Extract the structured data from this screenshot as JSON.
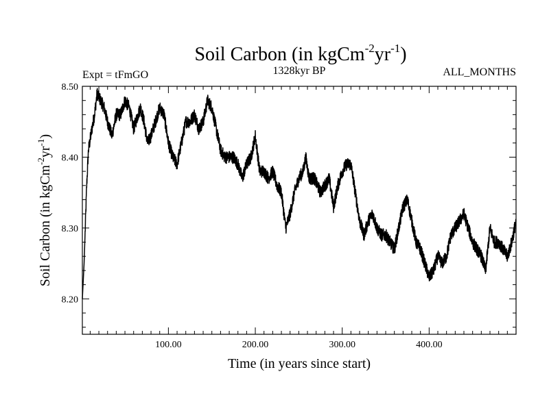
{
  "chart_data": {
    "type": "line",
    "title": "Soil Carbon (in kgCm",
    "title_sup1": "-2",
    "title_mid": "yr",
    "title_sup2": "-1",
    "title_end": ")",
    "left_label": "Expt = tFmGO",
    "center_label": "1328kyr BP",
    "right_label": "ALL_MONTHS",
    "xlabel": "Time (in years since start)",
    "ylabel": "Soil Carbon (in kgCm",
    "ylabel_sup1": "-2",
    "ylabel_mid": "yr",
    "ylabel_sup2": "-1",
    "ylabel_end": ")",
    "xlim": [
      1,
      500
    ],
    "ylim": [
      8.15,
      8.5
    ],
    "xticks": [
      100,
      200,
      300,
      400
    ],
    "xtick_labels": [
      "100.00",
      "200.00",
      "300.00",
      "400.00"
    ],
    "yticks": [
      8.2,
      8.3,
      8.4,
      8.5
    ],
    "ytick_labels": [
      "8.20",
      "8.30",
      "8.40",
      "8.50"
    ],
    "series_name": "Soil Carbon",
    "color": "#000000",
    "anchors": [
      [
        1,
        8.2
      ],
      [
        3,
        8.25
      ],
      [
        6,
        8.36
      ],
      [
        8,
        8.41
      ],
      [
        12,
        8.44
      ],
      [
        15,
        8.46
      ],
      [
        18,
        8.49
      ],
      [
        22,
        8.48
      ],
      [
        26,
        8.47
      ],
      [
        30,
        8.45
      ],
      [
        35,
        8.43
      ],
      [
        40,
        8.46
      ],
      [
        45,
        8.46
      ],
      [
        50,
        8.48
      ],
      [
        55,
        8.47
      ],
      [
        60,
        8.44
      ],
      [
        65,
        8.46
      ],
      [
        68,
        8.47
      ],
      [
        72,
        8.45
      ],
      [
        76,
        8.42
      ],
      [
        80,
        8.43
      ],
      [
        85,
        8.45
      ],
      [
        90,
        8.47
      ],
      [
        95,
        8.46
      ],
      [
        100,
        8.42
      ],
      [
        105,
        8.4
      ],
      [
        110,
        8.39
      ],
      [
        115,
        8.42
      ],
      [
        120,
        8.45
      ],
      [
        125,
        8.45
      ],
      [
        130,
        8.46
      ],
      [
        135,
        8.44
      ],
      [
        140,
        8.45
      ],
      [
        145,
        8.48
      ],
      [
        150,
        8.47
      ],
      [
        155,
        8.44
      ],
      [
        160,
        8.41
      ],
      [
        165,
        8.4
      ],
      [
        170,
        8.4
      ],
      [
        175,
        8.4
      ],
      [
        180,
        8.39
      ],
      [
        185,
        8.37
      ],
      [
        190,
        8.39
      ],
      [
        195,
        8.4
      ],
      [
        200,
        8.43
      ],
      [
        205,
        8.38
      ],
      [
        210,
        8.38
      ],
      [
        215,
        8.37
      ],
      [
        220,
        8.38
      ],
      [
        225,
        8.36
      ],
      [
        230,
        8.35
      ],
      [
        235,
        8.3
      ],
      [
        240,
        8.32
      ],
      [
        245,
        8.35
      ],
      [
        250,
        8.37
      ],
      [
        255,
        8.38
      ],
      [
        258,
        8.4
      ],
      [
        262,
        8.37
      ],
      [
        268,
        8.37
      ],
      [
        275,
        8.35
      ],
      [
        280,
        8.36
      ],
      [
        285,
        8.37
      ],
      [
        290,
        8.33
      ],
      [
        295,
        8.36
      ],
      [
        300,
        8.38
      ],
      [
        305,
        8.39
      ],
      [
        310,
        8.39
      ],
      [
        315,
        8.35
      ],
      [
        320,
        8.31
      ],
      [
        325,
        8.29
      ],
      [
        330,
        8.31
      ],
      [
        335,
        8.32
      ],
      [
        340,
        8.3
      ],
      [
        345,
        8.29
      ],
      [
        350,
        8.29
      ],
      [
        355,
        8.28
      ],
      [
        360,
        8.27
      ],
      [
        365,
        8.3
      ],
      [
        370,
        8.33
      ],
      [
        375,
        8.34
      ],
      [
        380,
        8.31
      ],
      [
        385,
        8.28
      ],
      [
        390,
        8.27
      ],
      [
        395,
        8.25
      ],
      [
        400,
        8.23
      ],
      [
        405,
        8.24
      ],
      [
        410,
        8.26
      ],
      [
        415,
        8.25
      ],
      [
        420,
        8.26
      ],
      [
        425,
        8.29
      ],
      [
        430,
        8.3
      ],
      [
        435,
        8.31
      ],
      [
        440,
        8.32
      ],
      [
        445,
        8.3
      ],
      [
        450,
        8.28
      ],
      [
        455,
        8.27
      ],
      [
        460,
        8.26
      ],
      [
        465,
        8.24
      ],
      [
        470,
        8.3
      ],
      [
        475,
        8.28
      ],
      [
        480,
        8.28
      ],
      [
        485,
        8.27
      ],
      [
        490,
        8.26
      ],
      [
        495,
        8.28
      ],
      [
        500,
        8.31
      ]
    ]
  }
}
